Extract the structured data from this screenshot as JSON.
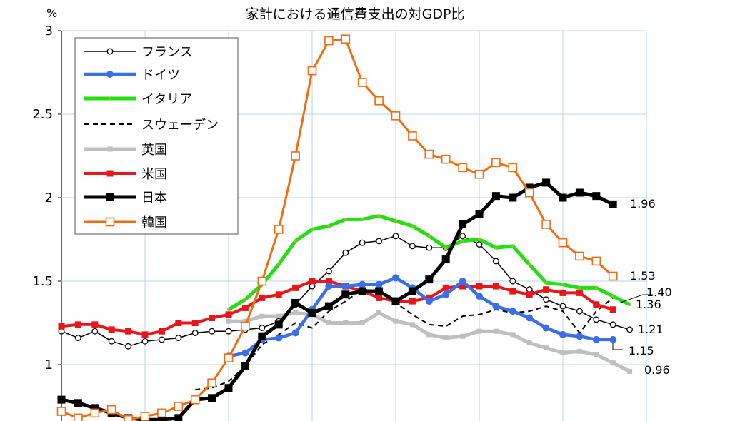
{
  "chart_data": {
    "type": "line",
    "title": "家計における通信費支出の対GDP比",
    "ylabel": "%",
    "xlabel": "",
    "ylim": [
      0.66,
      3
    ],
    "yticks": [
      "3",
      "2.5",
      "2",
      "1.5",
      "1"
    ],
    "ytick_values": [
      3,
      2.5,
      2,
      1.5,
      1
    ],
    "grid": true,
    "legend_position": "top-left",
    "x_count": 35,
    "series": [
      {
        "name": "スウェーデン",
        "key": "sweden",
        "color": "#000000",
        "start": 8,
        "values": [
          0.85,
          0.86,
          0.9,
          0.99,
          1.12,
          1.18,
          1.25,
          1.22,
          1.32,
          1.38,
          1.45,
          1.44,
          1.37,
          1.3,
          1.24,
          1.23,
          1.29,
          1.3,
          1.33,
          1.31,
          1.32,
          1.35,
          1.32,
          1.19,
          1.32,
          1.4
        ]
      },
      {
        "name": "英国",
        "key": "uk",
        "color": "#bfbfbf",
        "start": 10,
        "values": [
          1.26,
          1.26,
          1.29,
          1.29,
          1.31,
          1.3,
          1.25,
          1.25,
          1.25,
          1.31,
          1.26,
          1.24,
          1.18,
          1.16,
          1.17,
          1.2,
          1.2,
          1.18,
          1.13,
          1.1,
          1.07,
          1.08,
          1.06,
          1.01,
          0.96
        ]
      },
      {
        "name": "フランス",
        "key": "france",
        "color": "#000000",
        "start": 0,
        "values": [
          1.2,
          1.16,
          1.2,
          1.14,
          1.11,
          1.14,
          1.15,
          1.16,
          1.19,
          1.2,
          1.2,
          1.21,
          1.22,
          1.26,
          1.36,
          1.47,
          1.56,
          1.67,
          1.73,
          1.74,
          1.77,
          1.71,
          1.7,
          1.7,
          1.77,
          1.72,
          1.62,
          1.5,
          1.45,
          1.39,
          1.35,
          1.32,
          1.27,
          1.24,
          1.21
        ]
      },
      {
        "name": "米国",
        "key": "us",
        "color": "#e8161b",
        "start": 0,
        "values": [
          1.23,
          1.24,
          1.24,
          1.21,
          1.2,
          1.18,
          1.2,
          1.25,
          1.25,
          1.28,
          1.3,
          1.34,
          1.4,
          1.42,
          1.46,
          1.5,
          1.5,
          1.47,
          1.44,
          1.4,
          1.38,
          1.38,
          1.4,
          1.46,
          1.47,
          1.47,
          1.47,
          1.44,
          1.42,
          1.45,
          1.43,
          1.43,
          1.36,
          1.33
        ]
      },
      {
        "name": "ドイツ",
        "key": "germany",
        "color": "#3c6ee8",
        "start": 10,
        "values": [
          1.05,
          1.07,
          1.15,
          1.16,
          1.19,
          1.33,
          1.47,
          1.47,
          1.48,
          1.48,
          1.52,
          1.46,
          1.38,
          1.42,
          1.5,
          1.41,
          1.35,
          1.32,
          1.28,
          1.22,
          1.18,
          1.17,
          1.15,
          1.15
        ]
      },
      {
        "name": "イタリア",
        "key": "italy",
        "color": "#22e010",
        "start": 10,
        "values": [
          1.33,
          1.39,
          1.48,
          1.6,
          1.74,
          1.81,
          1.83,
          1.87,
          1.87,
          1.89,
          1.86,
          1.83,
          1.77,
          1.7,
          1.74,
          1.75,
          1.7,
          1.71,
          1.6,
          1.49,
          1.48,
          1.46,
          1.46,
          1.41,
          1.36
        ]
      },
      {
        "name": "日本",
        "key": "japan",
        "color": "#000000",
        "start": 0,
        "values": [
          0.79,
          0.77,
          0.74,
          0.71,
          0.68,
          0.67,
          0.67,
          0.68,
          0.79,
          0.8,
          0.86,
          0.99,
          1.17,
          1.24,
          1.37,
          1.31,
          1.35,
          1.42,
          1.44,
          1.44,
          1.38,
          1.44,
          1.51,
          1.63,
          1.84,
          1.9,
          2.01,
          2.0,
          2.06,
          2.09,
          2.0,
          2.03,
          2.01,
          1.96
        ]
      },
      {
        "name": "韓国",
        "key": "korea",
        "color": "#f26b0f",
        "start": 0,
        "values": [
          0.72,
          0.68,
          0.71,
          0.73,
          0.67,
          0.69,
          0.71,
          0.75,
          0.79,
          0.89,
          1.04,
          1.23,
          1.5,
          1.81,
          2.25,
          2.76,
          2.94,
          2.95,
          2.69,
          2.58,
          2.49,
          2.37,
          2.26,
          2.23,
          2.18,
          2.14,
          2.21,
          2.18,
          2.03,
          1.84,
          1.73,
          1.65,
          1.62,
          1.53
        ]
      }
    ],
    "legend_order": [
      "france",
      "germany",
      "italy",
      "sweden",
      "uk",
      "us",
      "japan",
      "korea"
    ],
    "end_labels": [
      {
        "series": "japan",
        "text": "1.96"
      },
      {
        "series": "korea",
        "text": "1.53"
      },
      {
        "series": "sweden",
        "text": "1.40"
      },
      {
        "series": "italy",
        "text": "1.36"
      },
      {
        "series": "france",
        "text": "1.21"
      },
      {
        "series": "germany",
        "text": "1.15"
      },
      {
        "series": "uk",
        "text": "0.96"
      }
    ]
  }
}
